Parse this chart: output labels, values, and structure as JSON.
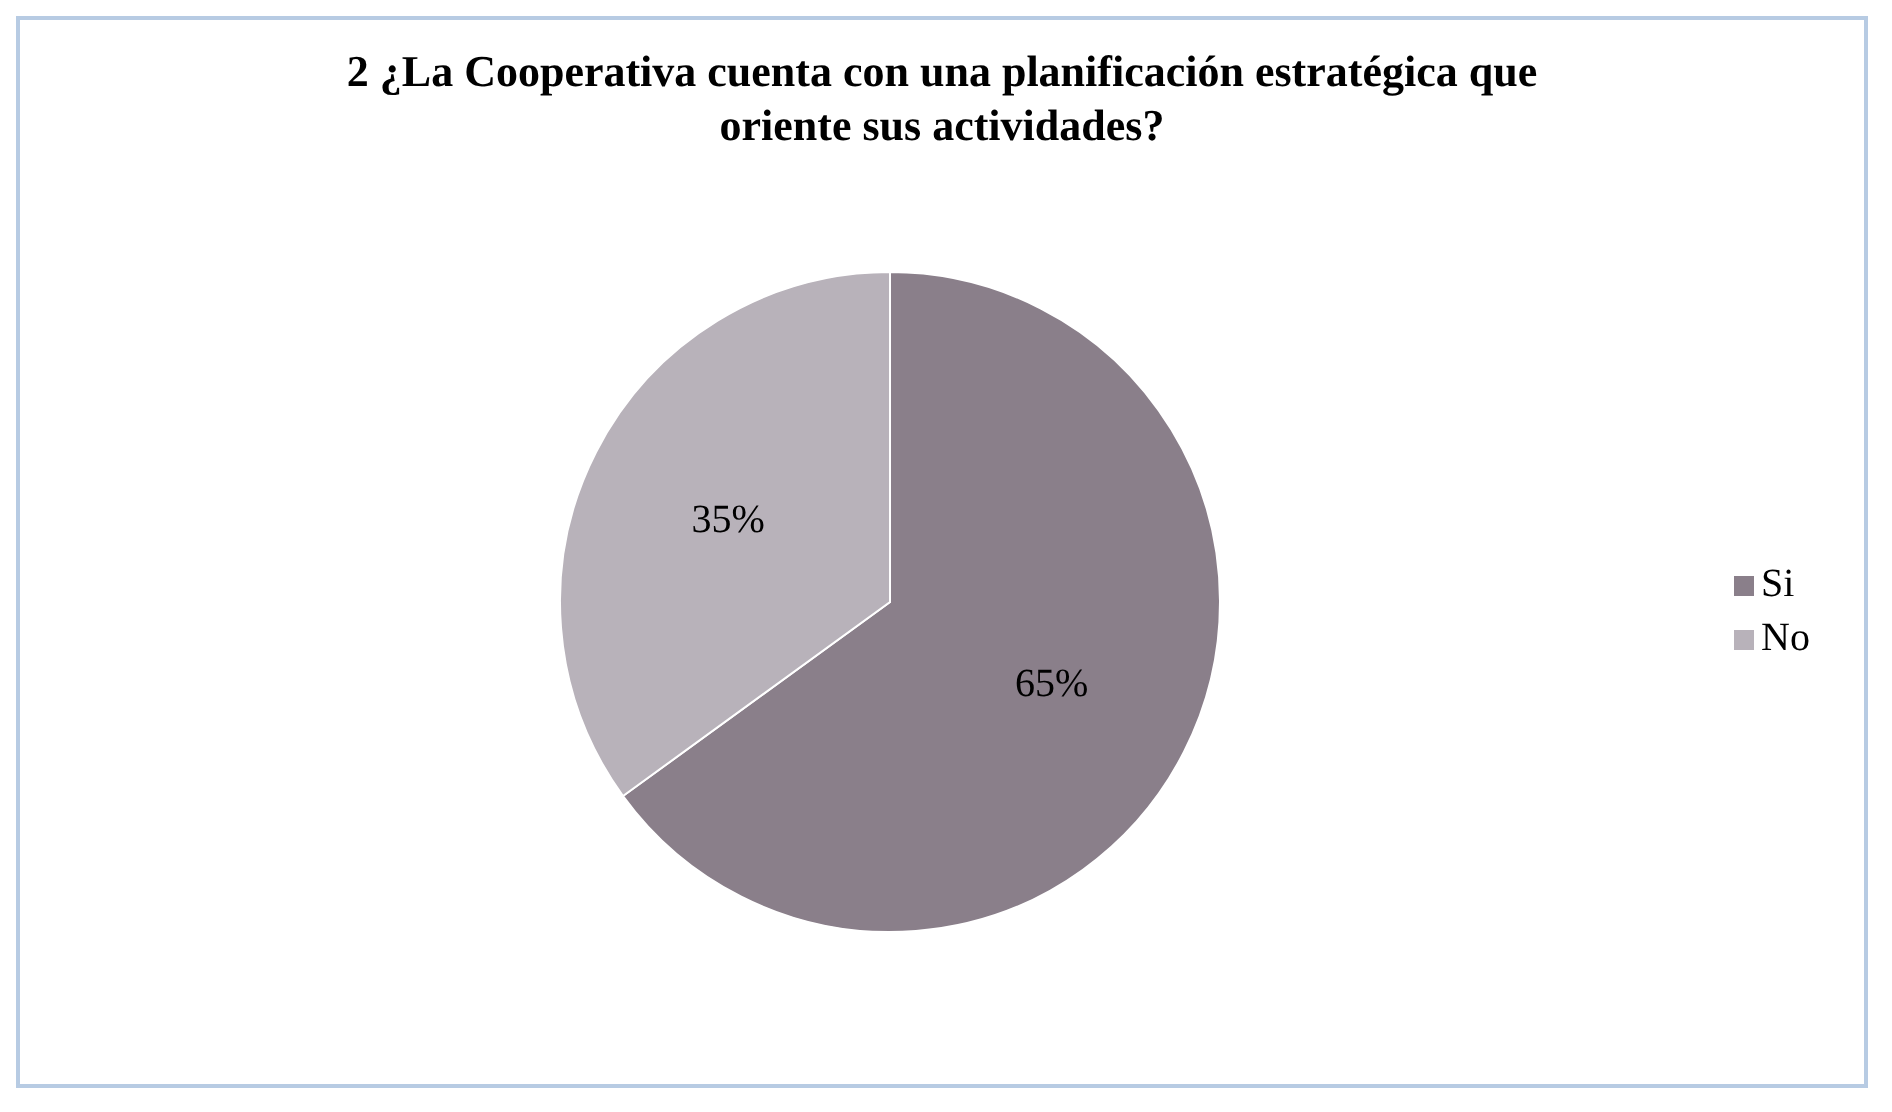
{
  "chart_data": {
    "type": "pie",
    "title": "2 ¿La Cooperativa cuenta con una planificación estratégica que oriente sus actividades?",
    "categories": [
      "Si",
      "No"
    ],
    "values": [
      65,
      35
    ],
    "colors": [
      "#8a7f8a",
      "#b8b2ba"
    ],
    "value_labels": [
      "65%",
      "35%"
    ],
    "legend": "right"
  }
}
